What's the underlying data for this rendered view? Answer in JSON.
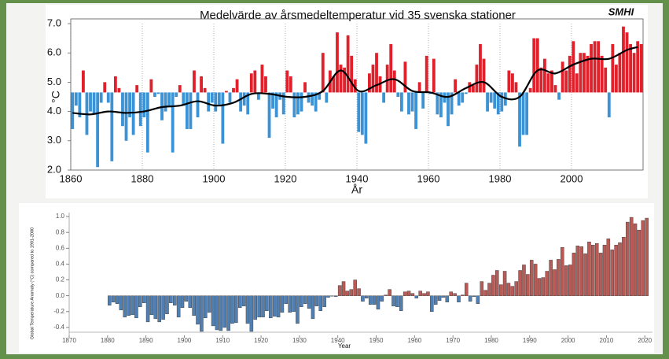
{
  "chart_data": [
    {
      "type": "bar",
      "title": "Medelvärde av årsmedeltemperatur vid 35 svenska stationer",
      "logo": "SMHI",
      "y_label": "°C",
      "x_label": "År",
      "xlim": [
        1860,
        2020
      ],
      "xticks": [
        1860,
        1880,
        1900,
        1920,
        1940,
        1960,
        1980,
        2000
      ],
      "ylim": [
        2,
        7
      ],
      "yticks": [
        {
          "value": 2,
          "label": "2.0"
        },
        {
          "value": 3,
          "label": "3.0"
        },
        {
          "value": 4,
          "label": "4.0"
        },
        {
          "value": 5,
          "label": "5.0"
        },
        {
          "value": 6,
          "label": "6.0"
        },
        {
          "value": 7,
          "label": "7.0"
        }
      ],
      "grid": true,
      "baseline": 4.65,
      "colors": {
        "above": "#e0202a",
        "below": "#3b93d6"
      },
      "x": [
        1860,
        1861,
        1862,
        1863,
        1864,
        1865,
        1866,
        1867,
        1868,
        1869,
        1870,
        1871,
        1872,
        1873,
        1874,
        1875,
        1876,
        1877,
        1878,
        1879,
        1880,
        1881,
        1882,
        1883,
        1884,
        1885,
        1886,
        1887,
        1888,
        1889,
        1890,
        1891,
        1892,
        1893,
        1894,
        1895,
        1896,
        1897,
        1898,
        1899,
        1900,
        1901,
        1902,
        1903,
        1904,
        1905,
        1906,
        1907,
        1908,
        1909,
        1910,
        1911,
        1912,
        1913,
        1914,
        1915,
        1916,
        1917,
        1918,
        1919,
        1920,
        1921,
        1922,
        1923,
        1924,
        1925,
        1926,
        1927,
        1928,
        1929,
        1930,
        1931,
        1932,
        1933,
        1934,
        1935,
        1936,
        1937,
        1938,
        1939,
        1940,
        1941,
        1942,
        1943,
        1944,
        1945,
        1946,
        1947,
        1948,
        1949,
        1950,
        1951,
        1952,
        1953,
        1954,
        1955,
        1956,
        1957,
        1958,
        1959,
        1960,
        1961,
        1962,
        1963,
        1964,
        1965,
        1966,
        1967,
        1968,
        1969,
        1970,
        1971,
        1972,
        1973,
        1974,
        1975,
        1976,
        1977,
        1978,
        1979,
        1980,
        1981,
        1982,
        1983,
        1984,
        1985,
        1986,
        1987,
        1988,
        1989,
        1990,
        1991,
        1992,
        1993,
        1994,
        1995,
        1996,
        1997,
        1998,
        1999,
        2000,
        2001,
        2002,
        2003,
        2004,
        2005,
        2006,
        2007,
        2008,
        2009,
        2010,
        2011,
        2012,
        2013,
        2014,
        2015,
        2016,
        2017,
        2018,
        2019
      ],
      "values": [
        3.4,
        4.2,
        3.8,
        5.4,
        3.2,
        4.0,
        3.9,
        2.1,
        4.3,
        5.0,
        4.3,
        2.3,
        5.2,
        4.8,
        3.5,
        3.0,
        3.8,
        3.2,
        4.9,
        3.5,
        3.8,
        2.6,
        5.1,
        4.5,
        4.6,
        3.7,
        4.0,
        4.2,
        2.6,
        4.5,
        4.9,
        4.2,
        3.4,
        3.4,
        5.4,
        3.8,
        5.2,
        4.8,
        4.0,
        4.3,
        4.0,
        4.2,
        2.9,
        4.7,
        4.3,
        4.8,
        5.1,
        4.0,
        4.2,
        3.9,
        5.3,
        5.4,
        4.4,
        5.6,
        5.2,
        3.1,
        4.1,
        3.8,
        4.4,
        3.9,
        5.4,
        5.2,
        3.8,
        3.9,
        4.0,
        5.0,
        4.3,
        4.2,
        4.0,
        4.4,
        6.0,
        4.3,
        5.4,
        5.2,
        6.7,
        5.6,
        5.5,
        6.6,
        5.9,
        5.1,
        3.3,
        3.2,
        2.9,
        5.3,
        5.6,
        6.0,
        5.2,
        4.3,
        5.6,
        6.3,
        5.4,
        4.5,
        4.0,
        5.7,
        3.9,
        4.0,
        3.4,
        5.0,
        4.1,
        5.9,
        4.6,
        5.8,
        3.9,
        3.8,
        4.3,
        3.5,
        3.9,
        5.1,
        4.2,
        4.3,
        4.6,
        5.0,
        4.9,
        5.6,
        6.3,
        5.8,
        4.0,
        4.3,
        4.1,
        3.9,
        4.0,
        4.2,
        5.4,
        5.3,
        5.0,
        2.8,
        3.2,
        3.2,
        4.8,
        6.5,
        6.5,
        5.5,
        5.8,
        5.3,
        5.4,
        4.9,
        4.4,
        5.7,
        5.4,
        5.9,
        6.4,
        5.3,
        6.0,
        6.0,
        5.9,
        6.3,
        6.4,
        6.4,
        5.9,
        5.5,
        3.8,
        6.3,
        5.6,
        6.0,
        6.9,
        6.7,
        6.3,
        6.0,
        6.4,
        6.3
      ],
      "trend": {
        "color": "#000000",
        "x": [
          1860,
          1865,
          1870,
          1875,
          1880,
          1885,
          1890,
          1895,
          1900,
          1905,
          1910,
          1915,
          1920,
          1925,
          1930,
          1935,
          1940,
          1945,
          1950,
          1955,
          1960,
          1965,
          1970,
          1975,
          1980,
          1985,
          1990,
          1995,
          2000,
          2005,
          2010,
          2015,
          2018
        ],
        "values": [
          3.95,
          3.9,
          4.0,
          3.95,
          4.0,
          4.15,
          4.2,
          4.35,
          4.2,
          4.3,
          4.6,
          4.6,
          4.5,
          4.5,
          4.7,
          5.4,
          4.7,
          4.9,
          5.1,
          4.7,
          4.65,
          4.5,
          4.8,
          5.0,
          4.5,
          4.5,
          5.4,
          5.3,
          5.6,
          5.8,
          5.8,
          6.1,
          6.2
        ]
      }
    },
    {
      "type": "bar",
      "y_label": "Global Temperature Anomaly (°C) compared to 1901-2000",
      "x_label": "Year",
      "xlim": [
        1870,
        2022
      ],
      "xticks": [
        1870,
        1880,
        1890,
        1900,
        1910,
        1920,
        1930,
        1940,
        1950,
        1960,
        1970,
        1980,
        1990,
        2000,
        2010,
        2020
      ],
      "ylim": [
        -0.5,
        1.05
      ],
      "yticks": [
        {
          "value": -0.4,
          "label": "-0.4"
        },
        {
          "value": -0.2,
          "label": "-0.2"
        },
        {
          "value": 0,
          "label": "0.0"
        },
        {
          "value": 0.2,
          "label": "0.2"
        },
        {
          "value": 0.4,
          "label": "0.4"
        },
        {
          "value": 0.6,
          "label": "0.6"
        },
        {
          "value": 0.8,
          "label": "0.8"
        },
        {
          "value": 1.0,
          "label": "1.0"
        }
      ],
      "grid": false,
      "baseline": 0,
      "colors": {
        "above": "#b85a55",
        "below": "#4f7fb3"
      },
      "x": [
        1880,
        1881,
        1882,
        1883,
        1884,
        1885,
        1886,
        1887,
        1888,
        1889,
        1890,
        1891,
        1892,
        1893,
        1894,
        1895,
        1896,
        1897,
        1898,
        1899,
        1900,
        1901,
        1902,
        1903,
        1904,
        1905,
        1906,
        1907,
        1908,
        1909,
        1910,
        1911,
        1912,
        1913,
        1914,
        1915,
        1916,
        1917,
        1918,
        1919,
        1920,
        1921,
        1922,
        1923,
        1924,
        1925,
        1926,
        1927,
        1928,
        1929,
        1930,
        1931,
        1932,
        1933,
        1934,
        1935,
        1936,
        1937,
        1938,
        1939,
        1940,
        1941,
        1942,
        1943,
        1944,
        1945,
        1946,
        1947,
        1948,
        1949,
        1950,
        1951,
        1952,
        1953,
        1954,
        1955,
        1956,
        1957,
        1958,
        1959,
        1960,
        1961,
        1962,
        1963,
        1964,
        1965,
        1966,
        1967,
        1968,
        1969,
        1970,
        1971,
        1972,
        1973,
        1974,
        1975,
        1976,
        1977,
        1978,
        1979,
        1980,
        1981,
        1982,
        1983,
        1984,
        1985,
        1986,
        1987,
        1988,
        1989,
        1990,
        1991,
        1992,
        1993,
        1994,
        1995,
        1996,
        1997,
        1998,
        1999,
        2000,
        2001,
        2002,
        2003,
        2004,
        2005,
        2006,
        2007,
        2008,
        2009,
        2010,
        2011,
        2012,
        2013,
        2014,
        2015,
        2016,
        2017,
        2018,
        2019,
        2020
      ],
      "values": [
        -0.12,
        -0.08,
        -0.1,
        -0.18,
        -0.27,
        -0.25,
        -0.24,
        -0.28,
        -0.14,
        -0.09,
        -0.33,
        -0.24,
        -0.29,
        -0.33,
        -0.3,
        -0.23,
        -0.09,
        -0.12,
        -0.27,
        -0.15,
        -0.07,
        -0.15,
        -0.25,
        -0.36,
        -0.45,
        -0.28,
        -0.21,
        -0.38,
        -0.43,
        -0.44,
        -0.4,
        -0.44,
        -0.35,
        -0.34,
        -0.15,
        -0.13,
        -0.35,
        -0.45,
        -0.3,
        -0.27,
        -0.27,
        -0.19,
        -0.28,
        -0.26,
        -0.27,
        -0.21,
        -0.1,
        -0.21,
        -0.2,
        -0.35,
        -0.14,
        -0.1,
        -0.16,
        -0.29,
        -0.13,
        -0.19,
        -0.14,
        -0.02,
        -0.005,
        -0.01,
        0.13,
        0.18,
        0.06,
        0.08,
        0.2,
        0.09,
        -0.07,
        -0.03,
        -0.11,
        -0.11,
        -0.17,
        -0.07,
        0.01,
        0.08,
        -0.13,
        -0.14,
        -0.19,
        0.05,
        0.06,
        0.03,
        -0.03,
        0.06,
        0.03,
        0.05,
        -0.2,
        -0.11,
        -0.06,
        -0.02,
        -0.08,
        0.05,
        0.03,
        -0.08,
        0.01,
        0.16,
        -0.07,
        -0.01,
        -0.1,
        0.18,
        0.07,
        0.16,
        0.26,
        0.32,
        0.14,
        0.31,
        0.16,
        0.12,
        0.18,
        0.32,
        0.39,
        0.27,
        0.45,
        0.4,
        0.22,
        0.23,
        0.31,
        0.45,
        0.33,
        0.46,
        0.61,
        0.38,
        0.39,
        0.54,
        0.63,
        0.62,
        0.53,
        0.68,
        0.64,
        0.66,
        0.54,
        0.64,
        0.72,
        0.58,
        0.64,
        0.67,
        0.74,
        0.93,
        0.99,
        0.91,
        0.83,
        0.95,
        0.98
      ]
    }
  ]
}
